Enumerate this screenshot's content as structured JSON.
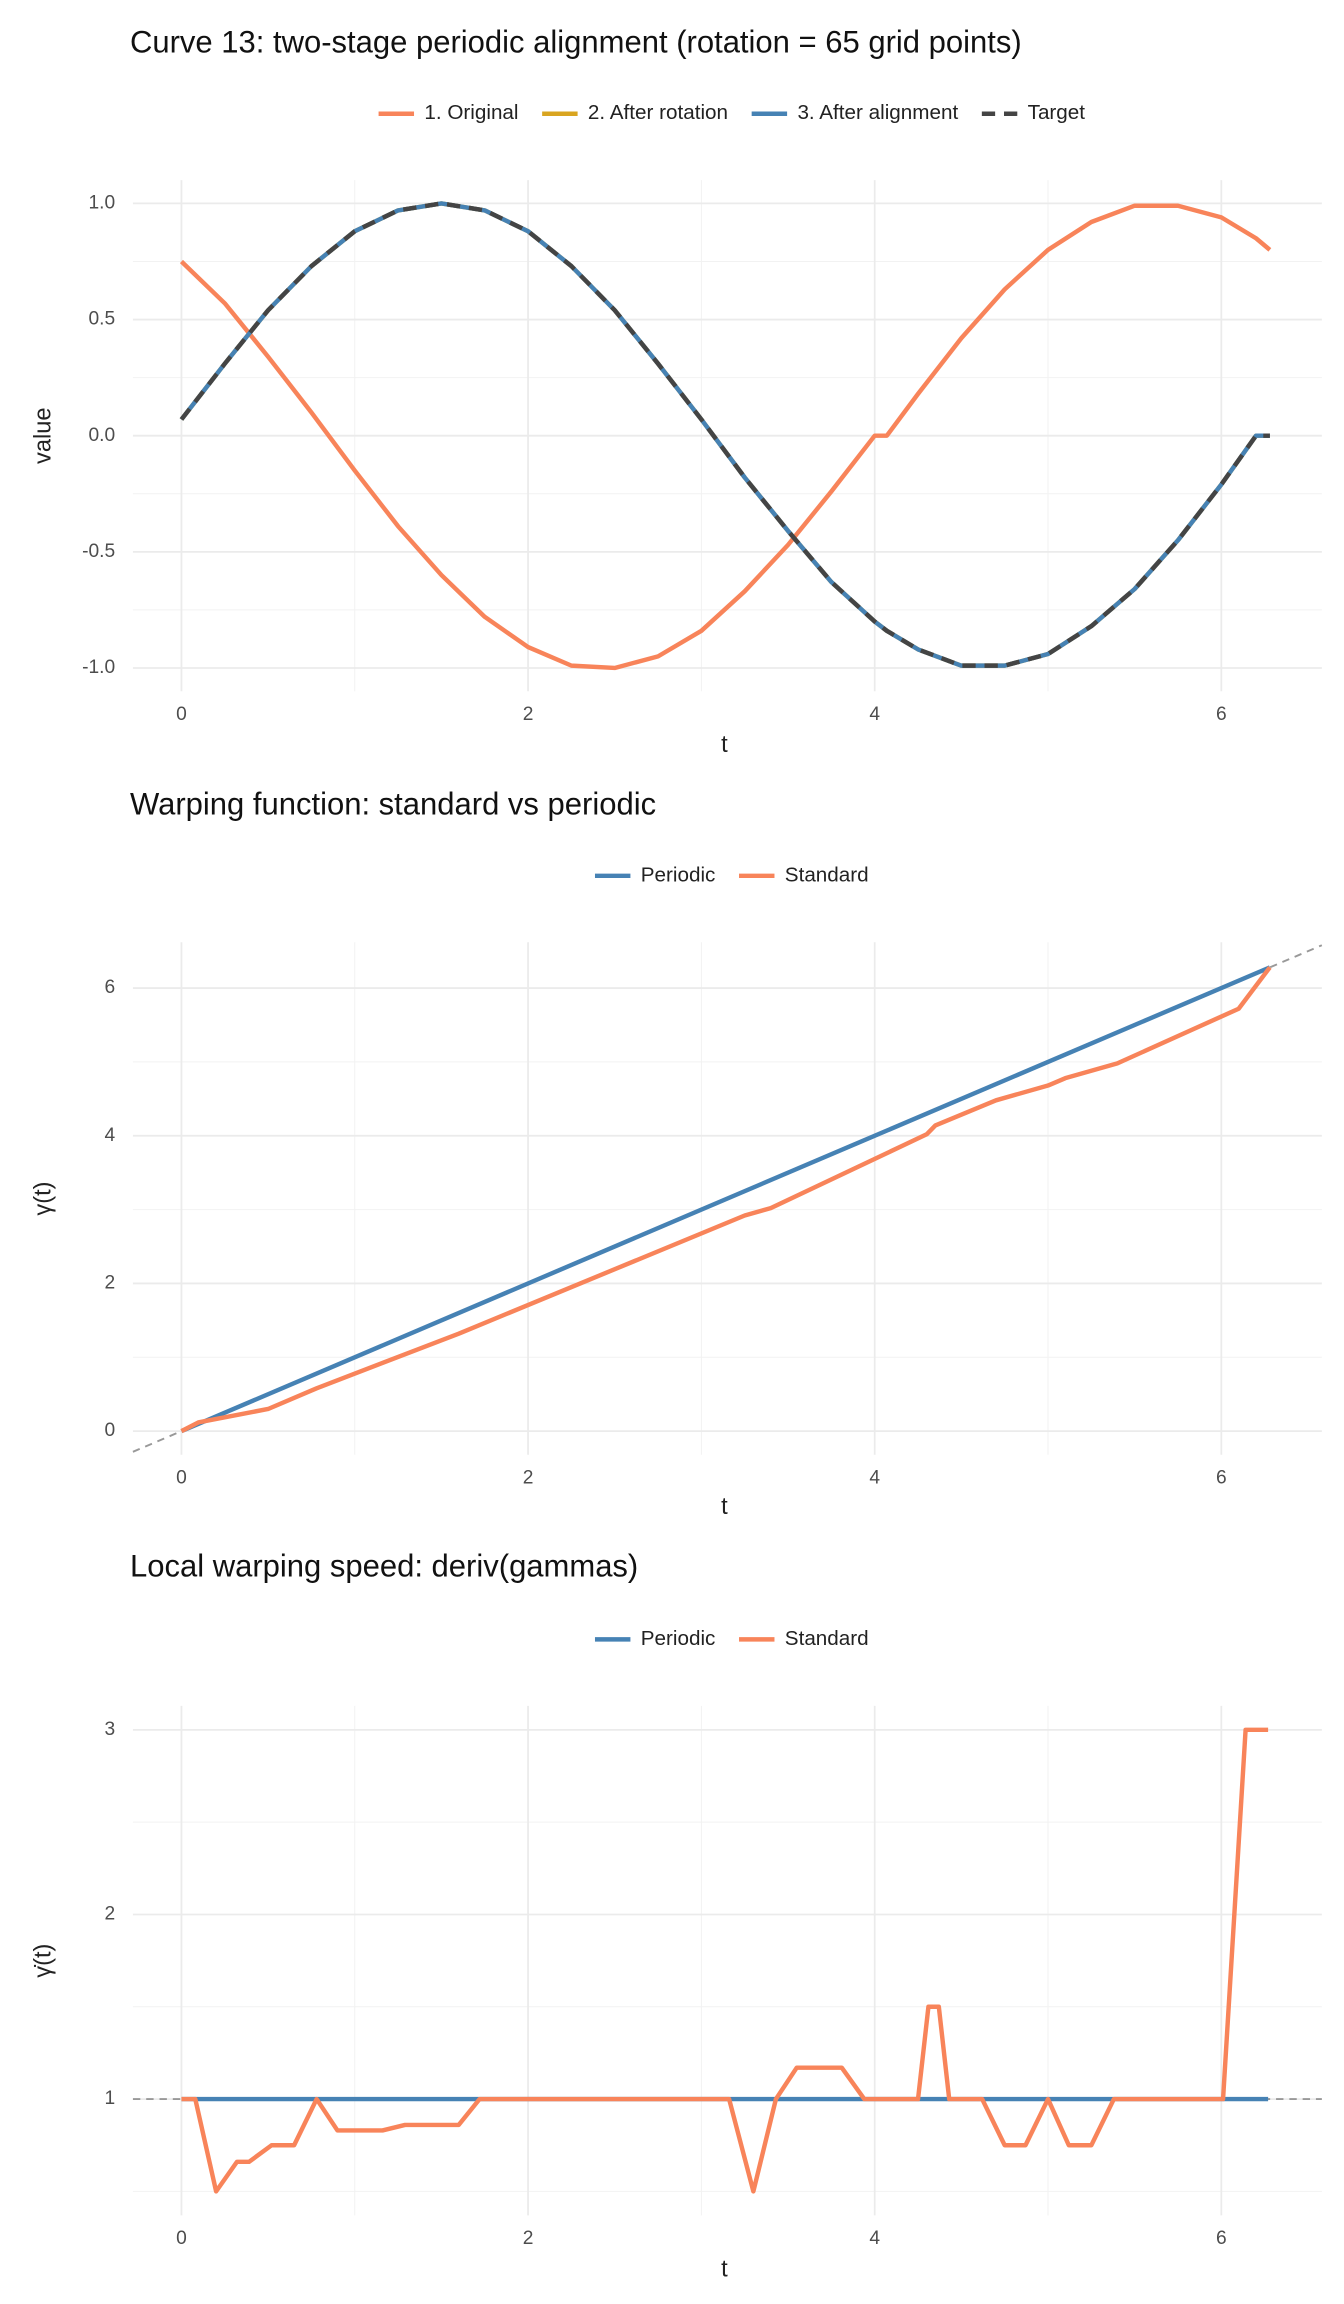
{
  "chart_data": [
    {
      "type": "line",
      "title": "Curve 13: two-stage periodic alignment (rotation = 65 grid points)",
      "x_label": "t",
      "y_label": "value",
      "legend": "top",
      "grid": true,
      "x": [
        0,
        0.25,
        0.5,
        0.75,
        1,
        1.25,
        1.5,
        1.75,
        2,
        2.25,
        2.5,
        2.75,
        3,
        3.25,
        3.5,
        3.75,
        4,
        4.07,
        4.25,
        4.5,
        4.75,
        5,
        5.25,
        5.5,
        5.75,
        6,
        6.2,
        6.28
      ],
      "series": [
        {
          "name": "1. Original",
          "color": "#f8845a",
          "values": [
            0.75,
            0.57,
            0.34,
            0.1,
            -0.15,
            -0.39,
            -0.6,
            -0.78,
            -0.91,
            -0.99,
            -1.0,
            -0.95,
            -0.84,
            -0.67,
            -0.47,
            -0.24,
            0,
            0,
            0.18,
            0.42,
            0.63,
            0.8,
            0.92,
            0.99,
            0.99,
            0.94,
            0.85,
            0.8
          ]
        },
        {
          "name": "2. After rotation",
          "color": "#d9a520",
          "values": [
            0.07,
            0.31,
            0.54,
            0.73,
            0.88,
            0.97,
            1.0,
            0.97,
            0.88,
            0.73,
            0.54,
            0.31,
            0.07,
            -0.18,
            -0.41,
            -0.63,
            -0.8,
            -0.84,
            -0.92,
            -0.99,
            -0.99,
            -0.94,
            -0.82,
            -0.66,
            -0.45,
            -0.21,
            0,
            0
          ]
        },
        {
          "name": "3. After alignment",
          "color": "#4682b4",
          "values": [
            0.07,
            0.31,
            0.54,
            0.73,
            0.88,
            0.97,
            1.0,
            0.97,
            0.88,
            0.73,
            0.54,
            0.31,
            0.07,
            -0.18,
            -0.41,
            -0.63,
            -0.8,
            -0.84,
            -0.92,
            -0.99,
            -0.99,
            -0.94,
            -0.82,
            -0.66,
            -0.45,
            -0.21,
            0,
            0
          ]
        },
        {
          "name": "Target",
          "color": "#444444",
          "dashed": true,
          "values": [
            0.07,
            0.31,
            0.54,
            0.73,
            0.88,
            0.97,
            1.0,
            0.97,
            0.88,
            0.73,
            0.54,
            0.31,
            0.07,
            -0.18,
            -0.41,
            -0.63,
            -0.8,
            -0.84,
            -0.92,
            -0.99,
            -0.99,
            -0.94,
            -0.82,
            -0.66,
            -0.45,
            -0.21,
            0,
            0
          ]
        }
      ],
      "xlim": [
        -0.28,
        6.58
      ],
      "xticks": [
        0,
        2,
        4,
        6
      ],
      "ylim": [
        -1.1,
        1.1
      ],
      "yticks": [
        {
          "value": -1,
          "label": "-1.0"
        },
        -0.5,
        {
          "value": 0,
          "label": "0.0"
        },
        0.5,
        {
          "value": 1,
          "label": "1.0"
        }
      ]
    },
    {
      "type": "line",
      "title": "Warping function: standard vs periodic",
      "x_label": "t",
      "y_label": "γ(t)",
      "legend": "top",
      "grid": true,
      "identity_line": true,
      "series": [
        {
          "name": "Periodic",
          "color": "#4682b4",
          "x": [
            0,
            6.28
          ],
          "values": [
            0,
            6.28
          ]
        },
        {
          "name": "Standard",
          "color": "#f8845a",
          "x": [
            0,
            0.1,
            0.5,
            0.78,
            1.6,
            3.25,
            3.4,
            4.3,
            4.35,
            4.7,
            5.0,
            5.1,
            5.4,
            6.1,
            6.28
          ],
          "values": [
            0,
            0.12,
            0.3,
            0.58,
            1.32,
            2.92,
            3.02,
            4.02,
            4.14,
            4.48,
            4.68,
            4.78,
            4.98,
            5.72,
            6.28
          ]
        }
      ],
      "xlim": [
        -0.28,
        6.58
      ],
      "xticks": [
        0,
        2,
        4,
        6
      ],
      "ylim": [
        -0.32,
        6.62
      ],
      "yticks": [
        0,
        2,
        4,
        6
      ]
    },
    {
      "type": "line",
      "title": "Local warping speed: deriv(gammas)",
      "x_label": "t",
      "y_label": "γ̇(t)",
      "legend": "top",
      "grid": true,
      "hline": 1,
      "series": [
        {
          "name": "Periodic",
          "color": "#4682b4",
          "x": [
            0,
            6.27
          ],
          "values": [
            1,
            1
          ]
        },
        {
          "name": "Standard",
          "color": "#f8845a",
          "x": [
            0,
            0.08,
            0.2,
            0.32,
            0.39,
            0.52,
            0.65,
            0.78,
            0.9,
            1.16,
            1.29,
            1.6,
            1.72,
            3.16,
            3.3,
            3.43,
            3.55,
            3.81,
            3.94,
            4.25,
            4.31,
            4.37,
            4.43,
            4.62,
            4.75,
            4.87,
            5.0,
            5.12,
            5.25,
            5.38,
            6.01,
            6.14,
            6.27
          ],
          "values": [
            1,
            1,
            0.5,
            0.66,
            0.66,
            0.75,
            0.75,
            1,
            0.83,
            0.83,
            0.86,
            0.86,
            1,
            1,
            0.5,
            1,
            1.17,
            1.17,
            1,
            1,
            1.5,
            1.5,
            1,
            1,
            0.75,
            0.75,
            1,
            0.75,
            0.75,
            1,
            1,
            3,
            3
          ]
        }
      ],
      "xlim": [
        -0.28,
        6.58
      ],
      "xticks": [
        0,
        2,
        4,
        6
      ],
      "ylim": [
        0.37,
        3.13
      ],
      "yticks": [
        1,
        2,
        3
      ]
    }
  ]
}
